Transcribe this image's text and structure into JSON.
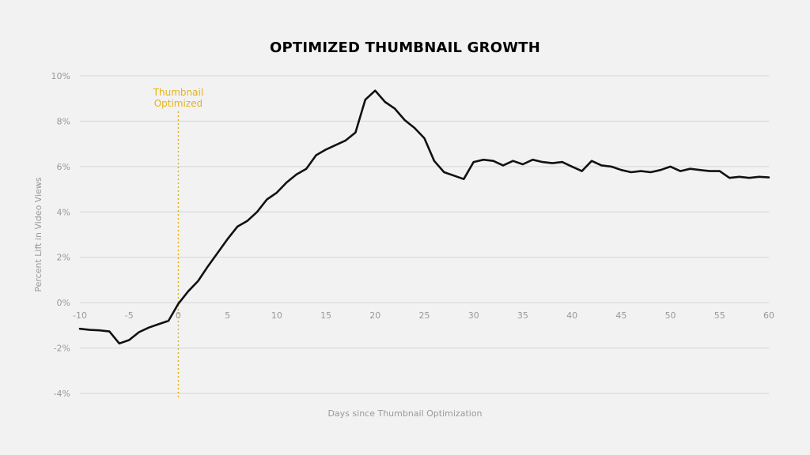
{
  "chart_data": {
    "type": "line",
    "title": "OPTIMIZED THUMBNAIL GROWTH",
    "xlabel": "Days since Thumbnail Optimization",
    "ylabel": "Percent Lift in Video Views",
    "xlim": [
      -10,
      60
    ],
    "ylim": [
      -4,
      10
    ],
    "x_ticks": [
      -10,
      -5,
      0,
      5,
      10,
      15,
      20,
      25,
      30,
      35,
      40,
      45,
      50,
      55,
      60
    ],
    "x_tick_labels": [
      "-10",
      "-5",
      "0",
      "5",
      "10",
      "15",
      "20",
      "25",
      "30",
      "35",
      "40",
      "45",
      "50",
      "55",
      "60"
    ],
    "y_ticks": [
      10,
      8,
      6,
      4,
      2,
      0,
      -2,
      -4
    ],
    "y_tick_labels": [
      "10%",
      "8%",
      "6%",
      "4%",
      "2%",
      "0%",
      "-2%",
      "-4%"
    ],
    "grid": "horizontal",
    "annotation": {
      "x": 0,
      "label_line1": "Thumbnail",
      "label_line2": "Optimized",
      "color": "#E5B41A"
    },
    "series": [
      {
        "color": "#111111",
        "x": [
          -10,
          -9,
          -8,
          -7,
          -6,
          -5,
          -4,
          -3,
          -2,
          -1,
          0,
          1,
          2,
          3,
          4,
          5,
          6,
          7,
          8,
          9,
          10,
          11,
          12,
          13,
          14,
          15,
          16,
          17,
          18,
          19,
          20,
          21,
          22,
          23,
          24,
          25,
          26,
          27,
          28,
          29,
          30,
          31,
          32,
          33,
          34,
          35,
          36,
          37,
          38,
          39,
          40,
          41,
          42,
          43,
          44,
          45,
          46,
          47,
          48,
          49,
          50,
          51,
          52,
          53,
          54,
          55,
          56,
          57,
          58,
          59,
          60
        ],
        "values": [
          -1.15,
          -1.2,
          -1.22,
          -1.27,
          -1.8,
          -1.65,
          -1.3,
          -1.1,
          -0.95,
          -0.8,
          -0.05,
          0.5,
          0.95,
          1.6,
          2.2,
          2.8,
          3.35,
          3.6,
          4.0,
          4.55,
          4.85,
          5.3,
          5.65,
          5.9,
          6.5,
          6.75,
          6.95,
          7.15,
          7.5,
          8.95,
          9.35,
          8.85,
          8.55,
          8.05,
          7.7,
          7.25,
          6.25,
          5.75,
          5.6,
          5.45,
          6.2,
          6.3,
          6.25,
          6.05,
          6.25,
          6.1,
          6.3,
          6.2,
          6.15,
          6.2,
          6.0,
          5.8,
          6.25,
          6.05,
          6.0,
          5.85,
          5.75,
          5.8,
          5.75,
          5.85,
          6.0,
          5.8,
          5.9,
          5.85,
          5.8,
          5.8,
          5.5,
          5.55,
          5.5,
          5.55,
          5.52
        ]
      }
    ]
  }
}
